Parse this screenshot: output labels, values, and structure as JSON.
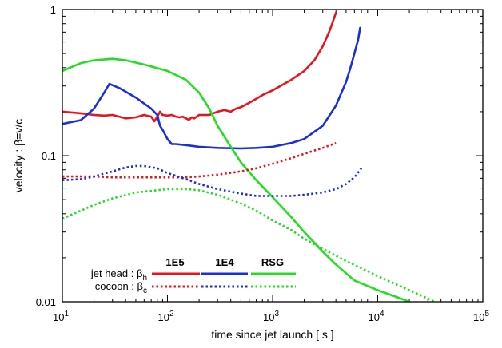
{
  "chart_data": {
    "type": "line",
    "xscale": "log",
    "yscale": "log",
    "xlim": [
      10,
      100000
    ],
    "ylim": [
      0.01,
      1
    ],
    "xlabel": "time since jet launch [ s ]",
    "ylabel": "velocity : β=v/c",
    "xticks": [
      {
        "v": 10,
        "b": "10",
        "e": "1"
      },
      {
        "v": 100,
        "b": "10",
        "e": "2"
      },
      {
        "v": 1000,
        "b": "10",
        "e": "3"
      },
      {
        "v": 10000,
        "b": "10",
        "e": "4"
      },
      {
        "v": 100000,
        "b": "10",
        "e": "5"
      }
    ],
    "yticks": [
      {
        "v": 0.01,
        "label": "0.01"
      },
      {
        "v": 0.1,
        "label": "0.1"
      },
      {
        "v": 1,
        "label": "1"
      }
    ],
    "grid": false,
    "legend": {
      "placement": "bottom-left",
      "row_labels": [
        {
          "text": "jet head : β",
          "sub": "h"
        },
        {
          "text": "cocoon : β",
          "sub": "c"
        }
      ],
      "columns": [
        "1E5",
        "1E4",
        "RSG"
      ]
    },
    "series": [
      {
        "name": "1E5",
        "component": "jet head",
        "color": "#e8141c",
        "dash": "solid",
        "x": [
          10,
          15,
          20,
          25,
          30,
          40,
          50,
          60,
          70,
          75,
          80,
          85,
          90,
          100,
          110,
          120,
          130,
          140,
          150,
          160,
          170,
          180,
          190,
          200,
          250,
          300,
          350,
          400,
          450,
          500,
          600,
          700,
          800,
          1000,
          1500,
          2000,
          2500,
          3000,
          3500,
          4000
        ],
        "y": [
          0.2,
          0.195,
          0.19,
          0.188,
          0.19,
          0.18,
          0.183,
          0.19,
          0.185,
          0.172,
          0.185,
          0.2,
          0.19,
          0.188,
          0.19,
          0.185,
          0.183,
          0.185,
          0.18,
          0.176,
          0.183,
          0.18,
          0.185,
          0.19,
          0.19,
          0.2,
          0.205,
          0.2,
          0.21,
          0.215,
          0.23,
          0.245,
          0.26,
          0.28,
          0.33,
          0.38,
          0.45,
          0.56,
          0.72,
          0.95
        ]
      },
      {
        "name": "1E4",
        "component": "jet head",
        "color": "#1b2fd6",
        "dash": "solid",
        "x": [
          10,
          15,
          20,
          25,
          28,
          35,
          50,
          70,
          80,
          85,
          90,
          100,
          110,
          120,
          150,
          200,
          300,
          500,
          700,
          1000,
          1500,
          2000,
          3000,
          4000,
          5000,
          5500,
          6000,
          6500,
          6800
        ],
        "y": [
          0.165,
          0.175,
          0.21,
          0.27,
          0.31,
          0.29,
          0.25,
          0.21,
          0.19,
          0.16,
          0.15,
          0.13,
          0.12,
          0.12,
          0.118,
          0.115,
          0.113,
          0.112,
          0.113,
          0.115,
          0.122,
          0.13,
          0.16,
          0.22,
          0.32,
          0.4,
          0.5,
          0.62,
          0.75
        ]
      },
      {
        "name": "RSG",
        "component": "jet head",
        "color": "#22dd22",
        "dash": "solid",
        "x": [
          10,
          15,
          20,
          30,
          40,
          60,
          100,
          150,
          200,
          250,
          300,
          400,
          500,
          700,
          1000,
          1500,
          2000,
          3000,
          4000,
          6000,
          10000,
          15000,
          20000
        ],
        "y": [
          0.38,
          0.43,
          0.45,
          0.46,
          0.45,
          0.42,
          0.38,
          0.33,
          0.27,
          0.21,
          0.16,
          0.115,
          0.09,
          0.068,
          0.052,
          0.038,
          0.03,
          0.022,
          0.018,
          0.014,
          0.012,
          0.0108,
          0.01
        ]
      },
      {
        "name": "1E5",
        "component": "cocoon",
        "color": "#e8141c",
        "dash": "dotted",
        "x": [
          10,
          20,
          30,
          50,
          100,
          150,
          200,
          300,
          500,
          700,
          1000,
          1500,
          2000,
          3000,
          4000
        ],
        "y": [
          0.072,
          0.072,
          0.071,
          0.071,
          0.071,
          0.071,
          0.072,
          0.074,
          0.078,
          0.082,
          0.088,
          0.096,
          0.103,
          0.113,
          0.122
        ]
      },
      {
        "name": "1E4",
        "component": "cocoon",
        "color": "#1b2fd6",
        "dash": "dotted",
        "x": [
          10,
          15,
          20,
          30,
          40,
          50,
          60,
          80,
          100,
          150,
          200,
          300,
          500,
          700,
          1000,
          1500,
          2000,
          3000,
          4000,
          5000,
          6000,
          7000
        ],
        "y": [
          0.068,
          0.069,
          0.072,
          0.078,
          0.083,
          0.085,
          0.085,
          0.082,
          0.076,
          0.069,
          0.064,
          0.059,
          0.055,
          0.053,
          0.053,
          0.053,
          0.054,
          0.056,
          0.059,
          0.064,
          0.071,
          0.082
        ]
      },
      {
        "name": "RSG",
        "component": "cocoon",
        "color": "#22dd22",
        "dash": "dotted",
        "x": [
          10,
          15,
          20,
          30,
          50,
          80,
          100,
          150,
          200,
          300,
          500,
          700,
          1000,
          1500,
          2000,
          3000,
          5000,
          10000,
          20000,
          35000
        ],
        "y": [
          0.037,
          0.042,
          0.046,
          0.051,
          0.056,
          0.058,
          0.059,
          0.059,
          0.058,
          0.054,
          0.047,
          0.042,
          0.036,
          0.031,
          0.027,
          0.023,
          0.019,
          0.015,
          0.012,
          0.01
        ]
      }
    ]
  }
}
